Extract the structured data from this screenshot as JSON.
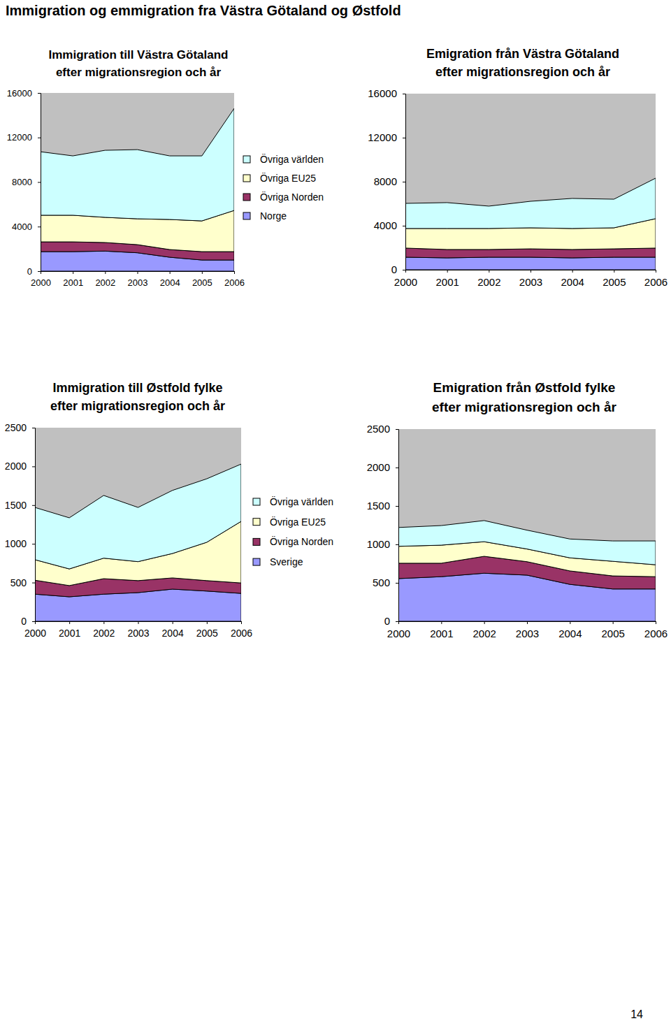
{
  "page": {
    "title": "Immigration og emmigration fra Västra Götaland og Østfold",
    "page_number": 14
  },
  "chart_data": [
    {
      "type": "area",
      "stacked": true,
      "legend": "right",
      "title": "Immigration till Västra Götaland\nefter migrationsregion och år",
      "x": [
        2000,
        2001,
        2002,
        2003,
        2004,
        2005,
        2006
      ],
      "xlim": [
        2000,
        2006
      ],
      "xticks": [
        2000,
        2001,
        2002,
        2003,
        2004,
        2005,
        2006
      ],
      "ylim": [
        0,
        16000
      ],
      "yticks": [
        0,
        4000,
        8000,
        12000,
        16000
      ],
      "series": [
        {
          "name": "Norge",
          "color": "#9999ff",
          "values": [
            1750,
            1750,
            1800,
            1650,
            1250,
            1000,
            1000
          ]
        },
        {
          "name": "Övriga Norden",
          "color": "#993366",
          "values": [
            880,
            880,
            770,
            730,
            690,
            750,
            750
          ]
        },
        {
          "name": "Övriga EU25",
          "color": "#ffffcc",
          "values": [
            2390,
            2390,
            2260,
            2320,
            2700,
            2760,
            3700
          ]
        },
        {
          "name": "Övriga världen",
          "color": "#ccffff",
          "values": [
            5700,
            5330,
            6020,
            6210,
            5710,
            5840,
            9160
          ]
        }
      ]
    },
    {
      "type": "area",
      "stacked": true,
      "title": "Emigration från Västra Götaland\nefter migrationsregion och år",
      "x": [
        2000,
        2001,
        2002,
        2003,
        2004,
        2005,
        2006
      ],
      "xlim": [
        2000,
        2006
      ],
      "xticks": [
        2000,
        2001,
        2002,
        2003,
        2004,
        2005,
        2006
      ],
      "ylim": [
        0,
        16000
      ],
      "yticks": [
        0,
        4000,
        8000,
        12000,
        16000
      ],
      "series": [
        {
          "color": "#9999ff",
          "values": [
            1140,
            1080,
            1140,
            1140,
            1080,
            1140,
            1140
          ]
        },
        {
          "color": "#993366",
          "values": [
            830,
            760,
            700,
            760,
            760,
            760,
            830
          ]
        },
        {
          "color": "#ffffcc",
          "values": [
            1780,
            1910,
            1910,
            1910,
            1910,
            1910,
            2670
          ]
        },
        {
          "color": "#ccffff",
          "values": [
            2280,
            2350,
            2030,
            2410,
            2730,
            2600,
            3680
          ]
        }
      ]
    },
    {
      "type": "area",
      "stacked": true,
      "legend": "right",
      "title": "Immigration till Østfold fylke\nefter migrationsregion och år",
      "x": [
        2000,
        2001,
        2002,
        2003,
        2004,
        2005,
        2006
      ],
      "xlim": [
        2000,
        2006
      ],
      "xticks": [
        2000,
        2001,
        2002,
        2003,
        2004,
        2005,
        2006
      ],
      "ylim": [
        0,
        2500
      ],
      "yticks": [
        0,
        500,
        1000,
        1500,
        2000,
        2500
      ],
      "series": [
        {
          "name": "Sverige",
          "color": "#9999ff",
          "values": [
            350,
            316,
            350,
            370,
            415,
            390,
            360
          ]
        },
        {
          "name": "Övriga Norden",
          "color": "#993366",
          "values": [
            180,
            145,
            200,
            155,
            145,
            135,
            135
          ]
        },
        {
          "name": "Övriga EU25",
          "color": "#ffffcc",
          "values": [
            265,
            215,
            265,
            245,
            315,
            495,
            795
          ]
        },
        {
          "name": "Övriga världen",
          "color": "#ccffff",
          "values": [
            675,
            660,
            810,
            700,
            815,
            820,
            740
          ]
        }
      ]
    },
    {
      "type": "area",
      "stacked": true,
      "title": "Emigration från Østfold fylke\nefter migrationsregion och år",
      "x": [
        2000,
        2001,
        2002,
        2003,
        2004,
        2005,
        2006
      ],
      "xlim": [
        2000,
        2006
      ],
      "xticks": [
        2000,
        2001,
        2002,
        2003,
        2004,
        2005,
        2006
      ],
      "ylim": [
        0,
        2500
      ],
      "yticks": [
        0,
        500,
        1000,
        1500,
        2000,
        2500
      ],
      "series": [
        {
          "color": "#9999ff",
          "values": [
            555,
            580,
            625,
            600,
            480,
            420,
            420
          ]
        },
        {
          "color": "#993366",
          "values": [
            200,
            175,
            220,
            175,
            175,
            170,
            160
          ]
        },
        {
          "color": "#ffffcc",
          "values": [
            220,
            235,
            190,
            165,
            170,
            190,
            155
          ]
        },
        {
          "color": "#ccffff",
          "values": [
            245,
            255,
            275,
            245,
            245,
            265,
            310
          ]
        }
      ]
    }
  ]
}
